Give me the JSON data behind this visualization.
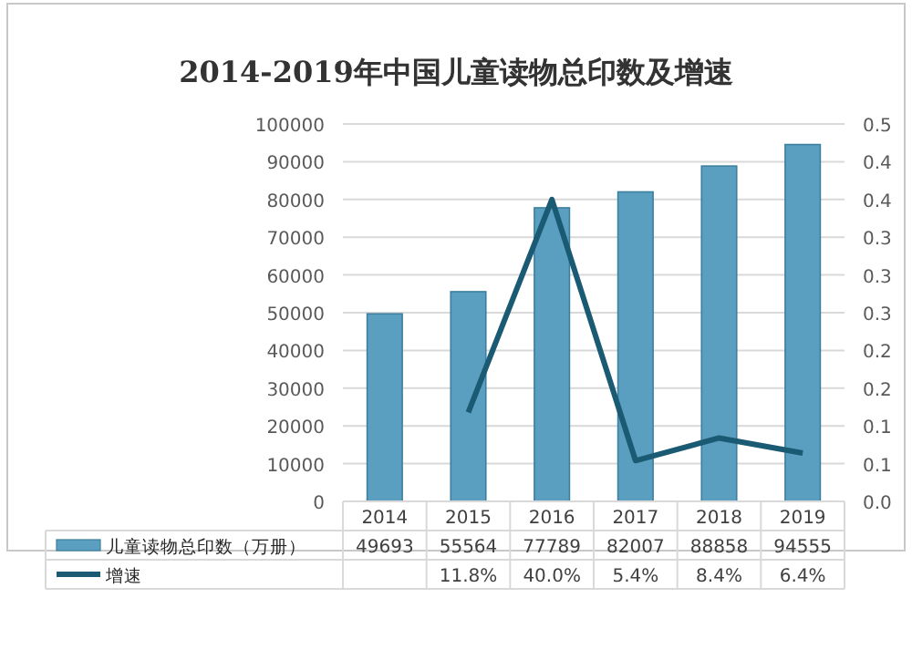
{
  "chart_data": {
    "type": "bar",
    "title": "2014-2019年中国儿童读物总印数及增速",
    "categories": [
      "2014",
      "2015",
      "2016",
      "2017",
      "2018",
      "2019"
    ],
    "series": [
      {
        "name": "儿童读物总印数（万册）",
        "color": "#5a9fc0",
        "values": [
          49693,
          55564,
          77789,
          82007,
          88858,
          94555
        ],
        "value_labels": [
          "49693",
          "55564",
          "77789",
          "82007",
          "88858",
          "94555"
        ]
      },
      {
        "name": "增速",
        "type": "line",
        "axis": "y2",
        "color": "#1b5a73",
        "values": [
          null,
          0.118,
          0.4,
          0.054,
          0.084,
          0.064
        ],
        "value_labels": [
          null,
          "11.8%",
          "40.0%",
          "5.4%",
          "8.4%",
          "6.4%"
        ]
      }
    ],
    "ylim": [
      0,
      100000
    ],
    "yticks": [
      0,
      10000,
      20000,
      30000,
      40000,
      50000,
      60000,
      70000,
      80000,
      90000,
      100000
    ],
    "y2lim": [
      0,
      0.5
    ],
    "y2ticks": [
      {
        "value": 0,
        "label": "0.0"
      },
      {
        "value": 0.05,
        "label": "0.1"
      },
      0.1,
      {
        "value": 0.15,
        "label": "0.2"
      },
      0.2,
      {
        "value": 0.25,
        "label": "0.3"
      },
      0.3,
      {
        "value": 0.35,
        "label": "0.3"
      },
      0.4,
      {
        "value": 0.45,
        "label": "0.4"
      },
      0.5
    ],
    "grid": "y",
    "legend": "bottom",
    "marker": "none"
  }
}
